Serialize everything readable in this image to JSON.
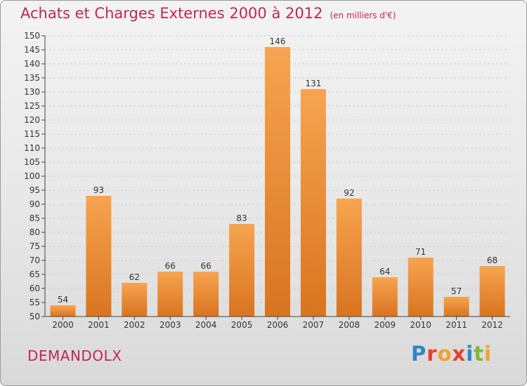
{
  "title": "Achats et Charges Externes 2000 à 2012",
  "unit_note": "(en milliers d'€)",
  "commune": "DEMANDOLX",
  "logo_text": "Proxiti",
  "colors": {
    "accent": "#c0284e",
    "bar_top": "#f7a450",
    "bar_bottom": "#d97420"
  },
  "chart_data": {
    "type": "bar",
    "title": "Achats et Charges Externes 2000 à 2012",
    "xlabel": "",
    "ylabel": "",
    "categories": [
      "2000",
      "2001",
      "2002",
      "2003",
      "2004",
      "2005",
      "2006",
      "2007",
      "2008",
      "2009",
      "2010",
      "2011",
      "2012"
    ],
    "values": [
      54,
      93,
      62,
      66,
      66,
      83,
      146,
      131,
      92,
      64,
      71,
      57,
      68
    ],
    "ylim": [
      50,
      150
    ],
    "yticks": [
      50,
      55,
      60,
      65,
      70,
      75,
      80,
      85,
      90,
      95,
      100,
      105,
      110,
      115,
      120,
      125,
      130,
      135,
      140,
      145,
      150
    ],
    "grid": true,
    "legend": "none"
  }
}
